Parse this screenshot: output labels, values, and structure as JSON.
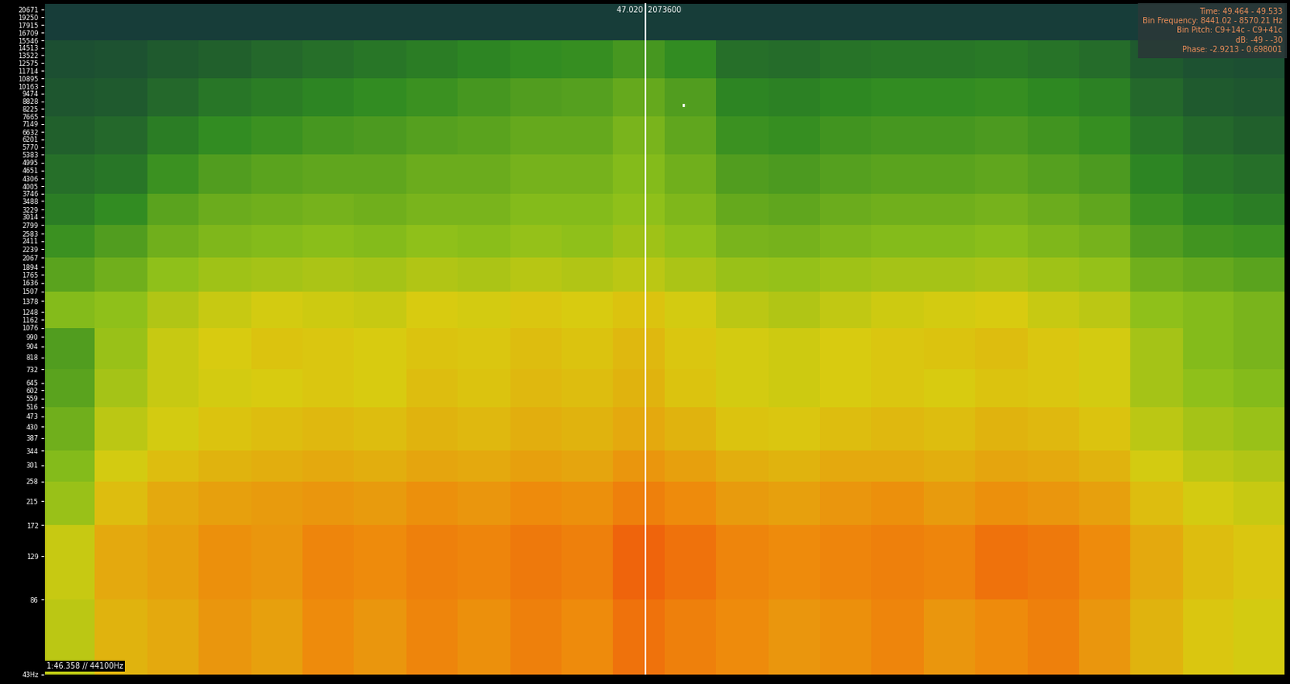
{
  "chart_data": {
    "type": "heatmap",
    "tick_labels": "y",
    "log": "y",
    "xlim": [
      8.2,
      88.3
    ],
    "ylim": [
      43,
      22050
    ],
    "yticks": [
      {
        "value": 43,
        "label": "43Hz"
      },
      86,
      129,
      172,
      215,
      258,
      301,
      344,
      387,
      430,
      473,
      516,
      559,
      602,
      645,
      732,
      818,
      904,
      990,
      1076,
      1162,
      1248,
      1378,
      1507,
      1636,
      1765,
      1894,
      2067,
      2239,
      2411,
      2583,
      2799,
      3014,
      3229,
      3488,
      3746,
      4005,
      4306,
      4651,
      4995,
      5383,
      5770,
      6201,
      6632,
      7149,
      7665,
      8225,
      8828,
      9474,
      10163,
      10895,
      11714,
      12575,
      13522,
      14513,
      15546,
      16709,
      17915,
      19250,
      20671
    ],
    "x_edges": [
      8.2,
      11.5,
      14.9,
      18.2,
      21.6,
      24.9,
      28.2,
      31.6,
      34.9,
      38.3,
      41.6,
      44.9,
      48.3,
      51.6,
      55.0,
      58.3,
      61.6,
      65.0,
      68.3,
      71.7,
      75.0,
      78.3,
      81.7,
      85.0,
      88.3
    ],
    "y_edges": [
      43,
      86,
      172,
      258,
      344,
      516,
      732,
      1076,
      1507,
      2067,
      2799,
      3746,
      5383,
      7665,
      10895,
      15546,
      22050
    ],
    "zlim": [
      -110,
      -20
    ],
    "cells": [
      [
        -52,
        -42,
        -40,
        -36,
        -38,
        -34,
        -36,
        -33,
        -35,
        -32,
        -34,
        -30,
        -32,
        -34,
        -36,
        -35,
        -33,
        -36,
        -34,
        -32,
        -36,
        -42,
        -46,
        -48
      ],
      [
        -50,
        -40,
        -38,
        -35,
        -36,
        -33,
        -34,
        -32,
        -33,
        -31,
        -32,
        -28,
        -30,
        -33,
        -34,
        -33,
        -32,
        -33,
        -30,
        -31,
        -34,
        -40,
        -44,
        -46
      ],
      [
        -58,
        -44,
        -40,
        -38,
        -37,
        -36,
        -37,
        -35,
        -36,
        -34,
        -35,
        -32,
        -34,
        -37,
        -38,
        -36,
        -35,
        -37,
        -35,
        -36,
        -38,
        -44,
        -48,
        -50
      ],
      [
        -62,
        -48,
        -44,
        -42,
        -41,
        -40,
        -41,
        -39,
        -40,
        -38,
        -39,
        -36,
        -38,
        -41,
        -42,
        -40,
        -40,
        -41,
        -39,
        -40,
        -42,
        -48,
        -52,
        -54
      ],
      [
        -66,
        -52,
        -48,
        -45,
        -44,
        -43,
        -44,
        -42,
        -43,
        -41,
        -42,
        -40,
        -42,
        -45,
        -46,
        -44,
        -43,
        -44,
        -42,
        -43,
        -45,
        -52,
        -56,
        -58
      ],
      [
        -70,
        -56,
        -50,
        -48,
        -47,
        -46,
        -47,
        -44,
        -45,
        -43,
        -44,
        -42,
        -45,
        -48,
        -49,
        -47,
        -46,
        -47,
        -45,
        -46,
        -48,
        -56,
        -60,
        -62
      ],
      [
        -72,
        -58,
        -50,
        -47,
        -45,
        -46,
        -47,
        -45,
        -46,
        -44,
        -45,
        -43,
        -46,
        -48,
        -49,
        -47,
        -46,
        -45,
        -44,
        -46,
        -48,
        -56,
        -62,
        -64
      ],
      [
        -62,
        -60,
        -54,
        -50,
        -48,
        -49,
        -50,
        -47,
        -48,
        -46,
        -47,
        -45,
        -48,
        -52,
        -54,
        -51,
        -49,
        -48,
        -47,
        -50,
        -52,
        -60,
        -62,
        -64
      ],
      [
        -70,
        -66,
        -60,
        -57,
        -56,
        -55,
        -56,
        -54,
        -55,
        -53,
        -54,
        -52,
        -55,
        -58,
        -59,
        -57,
        -56,
        -56,
        -55,
        -57,
        -59,
        -66,
        -68,
        -70
      ],
      [
        -76,
        -72,
        -66,
        -63,
        -62,
        -61,
        -62,
        -60,
        -61,
        -59,
        -60,
        -57,
        -60,
        -64,
        -65,
        -63,
        -62,
        -62,
        -61,
        -63,
        -65,
        -72,
        -75,
        -76
      ],
      [
        -82,
        -78,
        -70,
        -67,
        -66,
        -65,
        -66,
        -64,
        -64,
        -62,
        -62,
        -60,
        -63,
        -68,
        -69,
        -67,
        -66,
        -66,
        -65,
        -67,
        -69,
        -76,
        -80,
        -82
      ],
      [
        -86,
        -84,
        -76,
        -72,
        -70,
        -69,
        -69,
        -67,
        -67,
        -65,
        -65,
        -62,
        -66,
        -72,
        -73,
        -71,
        -70,
        -70,
        -69,
        -71,
        -73,
        -80,
        -84,
        -86
      ],
      [
        -90,
        -88,
        -82,
        -78,
        -76,
        -74,
        -73,
        -71,
        -70,
        -68,
        -68,
        -64,
        -69,
        -76,
        -77,
        -75,
        -74,
        -74,
        -73,
        -75,
        -77,
        -84,
        -88,
        -90
      ],
      [
        -94,
        -92,
        -88,
        -84,
        -82,
        -80,
        -78,
        -76,
        -74,
        -72,
        -71,
        -68,
        -72,
        -80,
        -81,
        -79,
        -78,
        -78,
        -77,
        -79,
        -81,
        -88,
        -92,
        -94
      ],
      [
        -98,
        -96,
        -92,
        -90,
        -88,
        -86,
        -84,
        -82,
        -80,
        -78,
        -77,
        -74,
        -78,
        -86,
        -87,
        -85,
        -84,
        -84,
        -83,
        -85,
        -87,
        -92,
        -96,
        -98
      ],
      [
        -108,
        -108,
        -108,
        -108,
        -108,
        -108,
        -108,
        -108,
        -108,
        -108,
        -108,
        -108,
        -108,
        -108,
        -108,
        -108,
        -108,
        -108,
        -108,
        -108,
        -108,
        -108,
        -108,
        -108
      ]
    ],
    "cursor": {
      "time": 47.02,
      "time_label": "47.020",
      "sample_label": "2073600"
    },
    "pointer": {
      "time": [
        49.464,
        49.533
      ],
      "frequency": [
        8441.02,
        8570.21
      ]
    },
    "info_box": [
      "Time: 49.464 - 49.533",
      "Bin Frequency: 8441.02 - 8570.21 Hz",
      "Bin Pitch: C9+14c - C9+41c",
      "dB: -49 - -30",
      "Phase: -2.9213 - 0.698001"
    ],
    "status": "1:46.358 // 44100Hz"
  }
}
